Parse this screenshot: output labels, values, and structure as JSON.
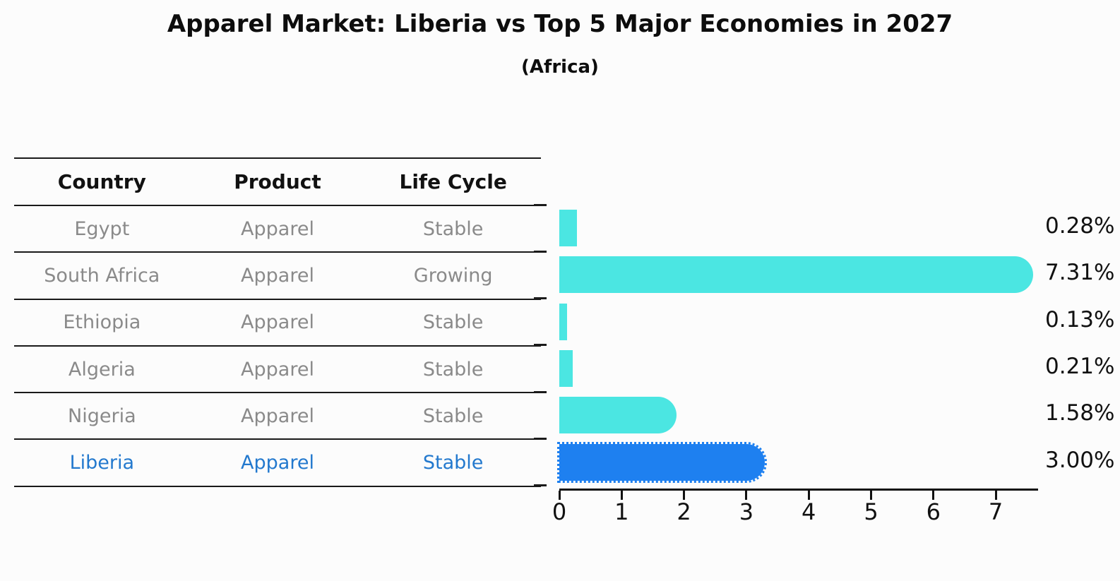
{
  "title": "Apparel Market: Liberia vs Top 5 Major Economies in 2027",
  "subtitle": "(Africa)",
  "table": {
    "columns": [
      "Country",
      "Product",
      "Life Cycle"
    ],
    "rows": [
      {
        "country": "Egypt",
        "product": "Apparel",
        "life_cycle": "Stable",
        "highlight": false
      },
      {
        "country": "South Africa",
        "product": "Apparel",
        "life_cycle": "Growing",
        "highlight": false
      },
      {
        "country": "Ethiopia",
        "product": "Apparel",
        "life_cycle": "Stable",
        "highlight": false
      },
      {
        "country": "Algeria",
        "product": "Apparel",
        "life_cycle": "Stable",
        "highlight": false
      },
      {
        "country": "Nigeria",
        "product": "Apparel",
        "life_cycle": "Stable",
        "highlight": true
      }
    ]
  },
  "chart_data": {
    "type": "bar",
    "orientation": "horizontal",
    "title": "Apparel Market: Liberia vs Top 5 Major Economies in 2027",
    "subtitle": "(Africa)",
    "categories": [
      "Egypt",
      "South Africa",
      "Ethiopia",
      "Algeria",
      "Nigeria",
      "Liberia"
    ],
    "values": [
      0.28,
      7.31,
      0.13,
      0.21,
      1.58,
      3.0
    ],
    "value_labels": [
      "0.28%",
      "7.31%",
      "0.13%",
      "0.21%",
      "1.58%",
      "3.00%"
    ],
    "highlight_index": 5,
    "x_ticks": [
      "0",
      "1",
      "2",
      "3",
      "4",
      "5",
      "6",
      "7"
    ],
    "xlim": [
      0,
      7.7
    ],
    "grid": false,
    "legend": "none",
    "bar_color": "#4be6e2",
    "highlight_bar_color": "#1e80f0",
    "highlight_text_color": "#2379ce",
    "text_color": "#8a8a8a",
    "axis_color": "#111111"
  }
}
